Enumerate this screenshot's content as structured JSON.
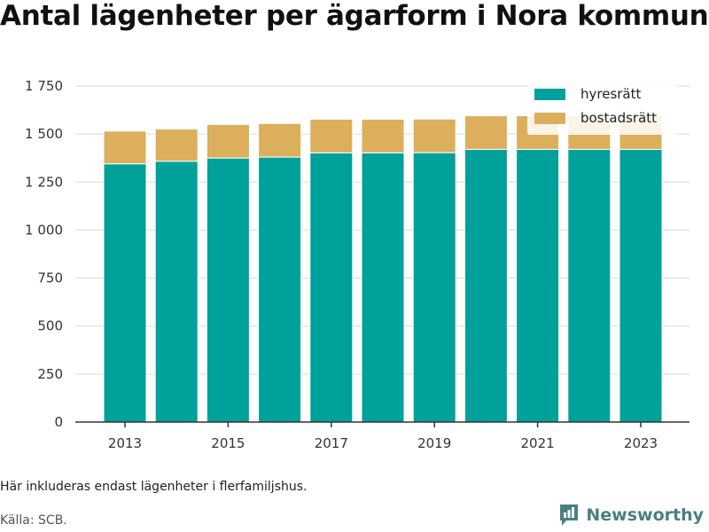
{
  "title": "Antal lägenheter per ägarform i Nora kommun",
  "footnote": "Här inkluderas endast lägenheter i flerfamiljshus.",
  "source": "Källa: SCB.",
  "logo_text": "Newsworthy",
  "colors": {
    "hyresratt": "#00a19a",
    "bostadsratt": "#dbaf5b",
    "grid": "#d9d9d9",
    "axis": "#333333",
    "logo": "#4a7f80"
  },
  "chart_data": {
    "type": "bar",
    "stacked": true,
    "title": "Antal lägenheter per ägarform i Nora kommun",
    "xlabel": "",
    "ylabel": "",
    "categories": [
      "2013",
      "2014",
      "2015",
      "2016",
      "2017",
      "2018",
      "2019",
      "2020",
      "2021",
      "2022",
      "2023"
    ],
    "x_tick_labels": [
      "2013",
      "2015",
      "2017",
      "2019",
      "2021",
      "2023"
    ],
    "y_tick_labels": [
      "0",
      "250",
      "500",
      "750",
      "1 000",
      "1 250",
      "1 500",
      "1 750"
    ],
    "y_ticks": [
      0,
      250,
      500,
      750,
      1000,
      1250,
      1500,
      1750
    ],
    "ylim": [
      0,
      1850
    ],
    "grid": true,
    "legend_position": "top-right",
    "series": [
      {
        "name": "hyresrätt",
        "color": "#00a19a",
        "values": [
          1345,
          1358,
          1375,
          1380,
          1402,
          1402,
          1403,
          1420,
          1420,
          1420,
          1420
        ]
      },
      {
        "name": "bostadsrätt",
        "color": "#dbaf5b",
        "values": [
          170,
          168,
          175,
          175,
          175,
          175,
          175,
          175,
          175,
          175,
          175
        ]
      }
    ]
  }
}
